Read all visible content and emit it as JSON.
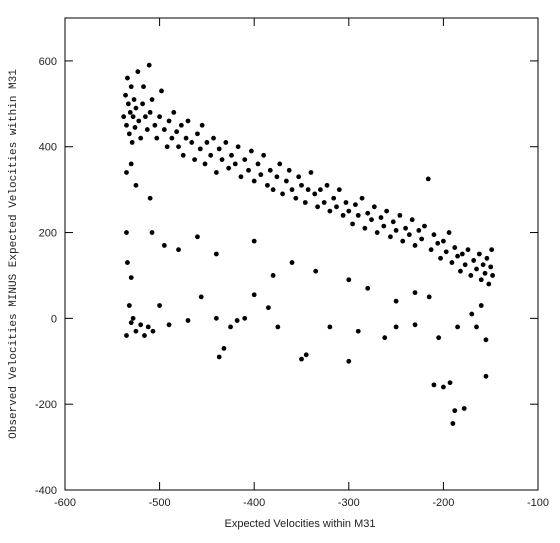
{
  "chart_data": {
    "type": "scatter",
    "x_label": "Expected Velocities within M31",
    "y_label": "Observed Velocities MINUS Expected Velocities within M31",
    "xlim": [
      -600,
      -100
    ],
    "ylim": [
      -400,
      700
    ],
    "xticks": [
      -600,
      -500,
      -400,
      -300,
      -200,
      -100
    ],
    "yticks": [
      -400,
      -200,
      0,
      200,
      400,
      600
    ],
    "grid": false,
    "series": [
      {
        "color": "#000000",
        "x": [
          -538,
          -536,
          -535,
          -534,
          -533,
          -532,
          -531,
          -530,
          -529,
          -528,
          -527,
          -526,
          -525,
          -523,
          -522,
          -520,
          -518,
          -517,
          -515,
          -513,
          -511,
          -510,
          -508,
          -505,
          -503,
          -500,
          -498,
          -495,
          -492,
          -490,
          -487,
          -485,
          -482,
          -480,
          -477,
          -475,
          -472,
          -470,
          -466,
          -463,
          -460,
          -457,
          -455,
          -452,
          -450,
          -446,
          -443,
          -440,
          -437,
          -434,
          -430,
          -427,
          -424,
          -420,
          -417,
          -414,
          -410,
          -406,
          -403,
          -400,
          -396,
          -393,
          -390,
          -386,
          -383,
          -380,
          -376,
          -373,
          -370,
          -366,
          -363,
          -360,
          -356,
          -353,
          -350,
          -346,
          -343,
          -340,
          -336,
          -333,
          -330,
          -326,
          -323,
          -320,
          -316,
          -313,
          -310,
          -306,
          -303,
          -300,
          -296,
          -293,
          -290,
          -286,
          -283,
          -280,
          -276,
          -273,
          -270,
          -266,
          -263,
          -260,
          -256,
          -253,
          -250,
          -246,
          -243,
          -240,
          -236,
          -233,
          -230,
          -226,
          -223,
          -220,
          -216,
          -213,
          -210,
          -206,
          -203,
          -200,
          -197,
          -194,
          -191,
          -188,
          -185,
          -182,
          -180,
          -177,
          -174,
          -171,
          -168,
          -165,
          -162,
          -160,
          -158,
          -156,
          -154,
          -152,
          -150,
          -149,
          -148,
          -535,
          -532,
          -530,
          -528,
          -525,
          -520,
          -516,
          -512,
          -507,
          -500,
          -490,
          -470,
          -456,
          -440,
          -437,
          -432,
          -425,
          -418,
          -410,
          -400,
          -385,
          -375,
          -350,
          -345,
          -320,
          -300,
          -290,
          -262,
          -250,
          -230,
          -210,
          -200,
          -193,
          -190,
          -188,
          -178,
          -165,
          -155,
          -535,
          -534,
          -530,
          -508,
          -495,
          -480,
          -460,
          -440,
          -400,
          -380,
          -360,
          -335,
          -300,
          -280,
          -250,
          -230,
          -215,
          -205,
          -185,
          -170,
          -160,
          -155,
          -535,
          -530,
          -525,
          -510
        ],
        "values": [
          470,
          520,
          450,
          560,
          500,
          430,
          480,
          540,
          410,
          470,
          510,
          445,
          490,
          575,
          460,
          420,
          500,
          540,
          470,
          440,
          590,
          480,
          510,
          450,
          420,
          470,
          530,
          440,
          400,
          460,
          420,
          480,
          435,
          400,
          450,
          380,
          420,
          460,
          410,
          370,
          430,
          395,
          450,
          360,
          410,
          380,
          420,
          340,
          395,
          370,
          410,
          350,
          380,
          360,
          400,
          330,
          370,
          345,
          390,
          320,
          360,
          335,
          380,
          310,
          345,
          300,
          330,
          360,
          290,
          320,
          345,
          300,
          280,
          330,
          310,
          270,
          300,
          340,
          290,
          260,
          300,
          270,
          310,
          250,
          280,
          260,
          300,
          240,
          270,
          250,
          220,
          265,
          240,
          280,
          210,
          245,
          230,
          260,
          200,
          235,
          215,
          250,
          190,
          225,
          205,
          240,
          180,
          210,
          195,
          230,
          170,
          205,
          185,
          215,
          325,
          160,
          195,
          175,
          140,
          180,
          155,
          200,
          130,
          165,
          145,
          110,
          150,
          125,
          160,
          100,
          135,
          115,
          150,
          90,
          125,
          105,
          140,
          80,
          120,
          160,
          100,
          -40,
          30,
          -10,
          0,
          -30,
          -15,
          -40,
          -20,
          -30,
          30,
          -15,
          -5,
          50,
          0,
          -90,
          -70,
          -20,
          -5,
          0,
          55,
          25,
          -20,
          -95,
          -85,
          -20,
          -100,
          -30,
          -45,
          -20,
          -15,
          -155,
          -160,
          -150,
          -245,
          -215,
          -210,
          -20,
          -135,
          200,
          130,
          95,
          200,
          170,
          160,
          190,
          150,
          180,
          100,
          130,
          110,
          90,
          70,
          40,
          60,
          50,
          -45,
          -20,
          10,
          30,
          -50,
          340,
          360,
          310,
          280
        ]
      }
    ]
  }
}
